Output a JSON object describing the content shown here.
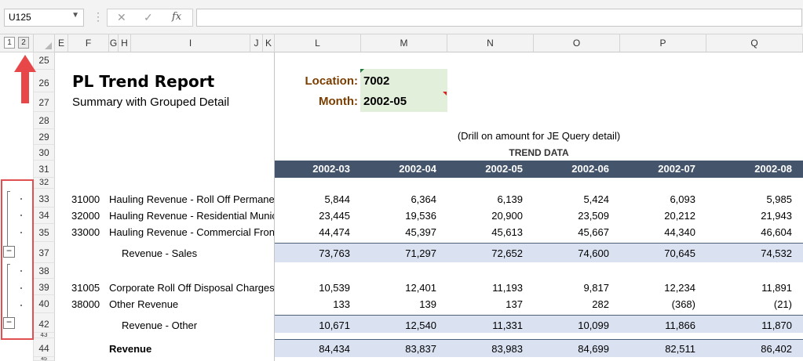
{
  "formula_bar": {
    "name_box": "U125",
    "cancel_icon": "✕",
    "enter_icon": "✓",
    "fx_icon": "fx",
    "formula": ""
  },
  "outline_levels": [
    "1",
    "2"
  ],
  "columns": [
    "E",
    "F",
    "G",
    "H",
    "I",
    "J",
    "K",
    "L",
    "M",
    "N",
    "O",
    "P",
    "Q"
  ],
  "rows": [
    "25",
    "26",
    "27",
    "28",
    "29",
    "30",
    "31",
    "32",
    "33",
    "34",
    "35",
    "37",
    "38",
    "39",
    "40",
    "42",
    "43",
    "44",
    "45"
  ],
  "report": {
    "title": "PL Trend Report",
    "subtitle": "Summary with Grouped Detail",
    "location_label": "Location:",
    "location_value": "7002",
    "month_label": "Month:",
    "month_value": "2002-05",
    "note": "(Drill on amount for JE Query detail)",
    "trend_title": "TREND DATA",
    "periods": [
      "2002-03",
      "2002-04",
      "2002-05",
      "2002-06",
      "2002-07",
      "2002-08"
    ]
  },
  "lines": [
    {
      "acct": "31000",
      "name": "Hauling Revenue - Roll Off Permanent",
      "values": [
        "5,844",
        "6,364",
        "6,139",
        "5,424",
        "6,093",
        "5,985"
      ]
    },
    {
      "acct": "32000",
      "name": "Hauling Revenue - Residential Municipal",
      "values": [
        "23,445",
        "19,536",
        "20,900",
        "23,509",
        "20,212",
        "21,943"
      ]
    },
    {
      "acct": "33000",
      "name": "Hauling Revenue - Commercial Front Load",
      "values": [
        "44,474",
        "45,397",
        "45,613",
        "45,667",
        "44,340",
        "46,604"
      ]
    },
    {
      "acct": "31005",
      "name": "Corporate Roll Off Disposal Charges",
      "values": [
        "10,539",
        "12,401",
        "11,193",
        "9,817",
        "12,234",
        "11,891"
      ]
    },
    {
      "acct": "38000",
      "name": "Other Revenue",
      "values": [
        "133",
        "139",
        "137",
        "282",
        "(368)",
        "(21)"
      ]
    }
  ],
  "subtotals": [
    {
      "label": "Revenue - Sales",
      "values": [
        "73,763",
        "71,297",
        "72,652",
        "74,600",
        "70,645",
        "74,532"
      ]
    },
    {
      "label": "Revenue - Other",
      "values": [
        "10,671",
        "12,540",
        "11,331",
        "10,099",
        "11,866",
        "11,870"
      ]
    }
  ],
  "total": {
    "label": "Revenue",
    "values": [
      "84,434",
      "83,837",
      "83,983",
      "84,699",
      "82,511",
      "86,402"
    ]
  },
  "outline_buttons": [
    "−",
    "−"
  ],
  "colors": {
    "header_band": "#44546a",
    "input_fill": "#e2efda",
    "subtotal_fill": "#dae2f2",
    "label_brown": "#7a3e00",
    "highlight": "#e05050"
  }
}
